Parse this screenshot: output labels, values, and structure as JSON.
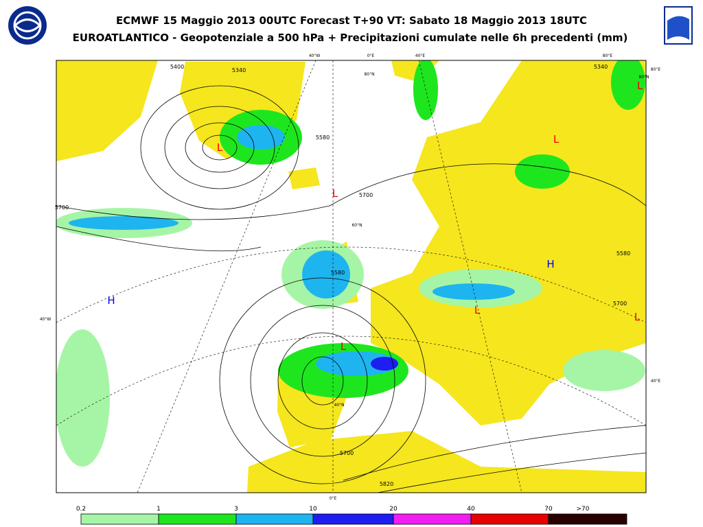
{
  "header": {
    "title": "ECMWF 15 Maggio 2013 00UTC Forecast T+90 VT: Sabato 18 Maggio 2013 18UTC",
    "subtitle": "EUROATLANTICO - Geopotenziale a 500 hPa + Precipitazioni cumulate nelle 6h precedenti (mm)"
  },
  "map": {
    "graticule_labels": [
      "40°W",
      "0°E",
      "40°E",
      "80°E",
      "80°N",
      "80°E",
      "40°W",
      "40°E",
      "40°N",
      "0°E",
      "80°N",
      "60°N"
    ],
    "centers": [
      "L",
      "L",
      "L",
      "L",
      "L",
      "L",
      "L",
      "H",
      "H"
    ],
    "contour_labels": [
      "5340",
      "5580",
      "5700",
      "5580",
      "5700",
      "5820",
      "5340",
      "5400",
      "5700",
      "5700",
      "5580"
    ]
  },
  "legend": {
    "ticks": [
      "0.2",
      "1",
      "3",
      "10",
      "20",
      "40",
      "70",
      ">70"
    ],
    "colors": [
      "#a6f5a6",
      "#1ee61e",
      "#1eb4f0",
      "#1e1ef0",
      "#f01ef0",
      "#e60000",
      "#280000"
    ]
  }
}
